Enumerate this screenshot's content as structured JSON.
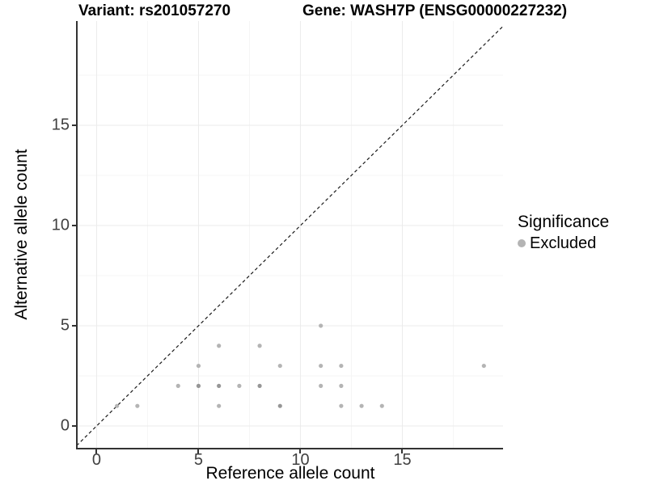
{
  "chart_data": {
    "type": "scatter",
    "title_left": "Variant: rs201057270",
    "title_right": "Gene: WASH7P (ENSG00000227232)",
    "xlabel": "Reference allele count",
    "ylabel": "Alternative allele count",
    "x_ticks": [
      0,
      5,
      10,
      15
    ],
    "y_ticks": [
      0,
      5,
      10,
      15
    ],
    "x_minor_gridlines": [
      2.5,
      7.5,
      12.5,
      17.5
    ],
    "y_minor_gridlines": [
      2.5,
      7.5,
      12.5,
      17.5
    ],
    "xlim": [
      -0.93,
      19.94
    ],
    "ylim": [
      -1.09,
      20.2
    ],
    "grid": "major and minor light-gray lines on white panel",
    "identity_line": {
      "type": "y=x",
      "style": "dashed",
      "color": "#1a1a1a"
    },
    "series": [
      {
        "name": "Excluded",
        "color": "#b4b4b4",
        "points": [
          [
            1,
            1
          ],
          [
            2,
            1
          ],
          [
            4,
            2
          ],
          [
            5,
            2
          ],
          [
            5,
            3
          ],
          [
            6,
            1
          ],
          [
            6,
            2
          ],
          [
            6,
            4
          ],
          [
            7,
            2
          ],
          [
            8,
            2
          ],
          [
            8,
            4
          ],
          [
            9,
            1
          ],
          [
            9,
            3
          ],
          [
            11,
            2
          ],
          [
            11,
            3
          ],
          [
            11,
            5
          ],
          [
            12,
            1
          ],
          [
            12,
            2
          ],
          [
            12,
            3
          ],
          [
            13,
            1
          ],
          [
            14,
            1
          ],
          [
            19,
            3
          ]
        ],
        "overplotted_darker_points": [
          [
            5,
            2
          ],
          [
            6,
            2
          ],
          [
            8,
            2
          ],
          [
            9,
            1
          ]
        ]
      }
    ],
    "legend": {
      "title": "Significance",
      "position": "right",
      "entries": [
        {
          "label": "Excluded",
          "color": "#b4b4b4"
        }
      ]
    }
  },
  "colors": {
    "background": "#ffffff",
    "grid_major": "#ebebeb",
    "grid_minor": "#f5f5f5",
    "axis_line": "#333333",
    "tick_text": "#404040",
    "point": "#b4b4b4",
    "point_overlap": "#969696",
    "dashed_line": "#1a1a1a"
  }
}
